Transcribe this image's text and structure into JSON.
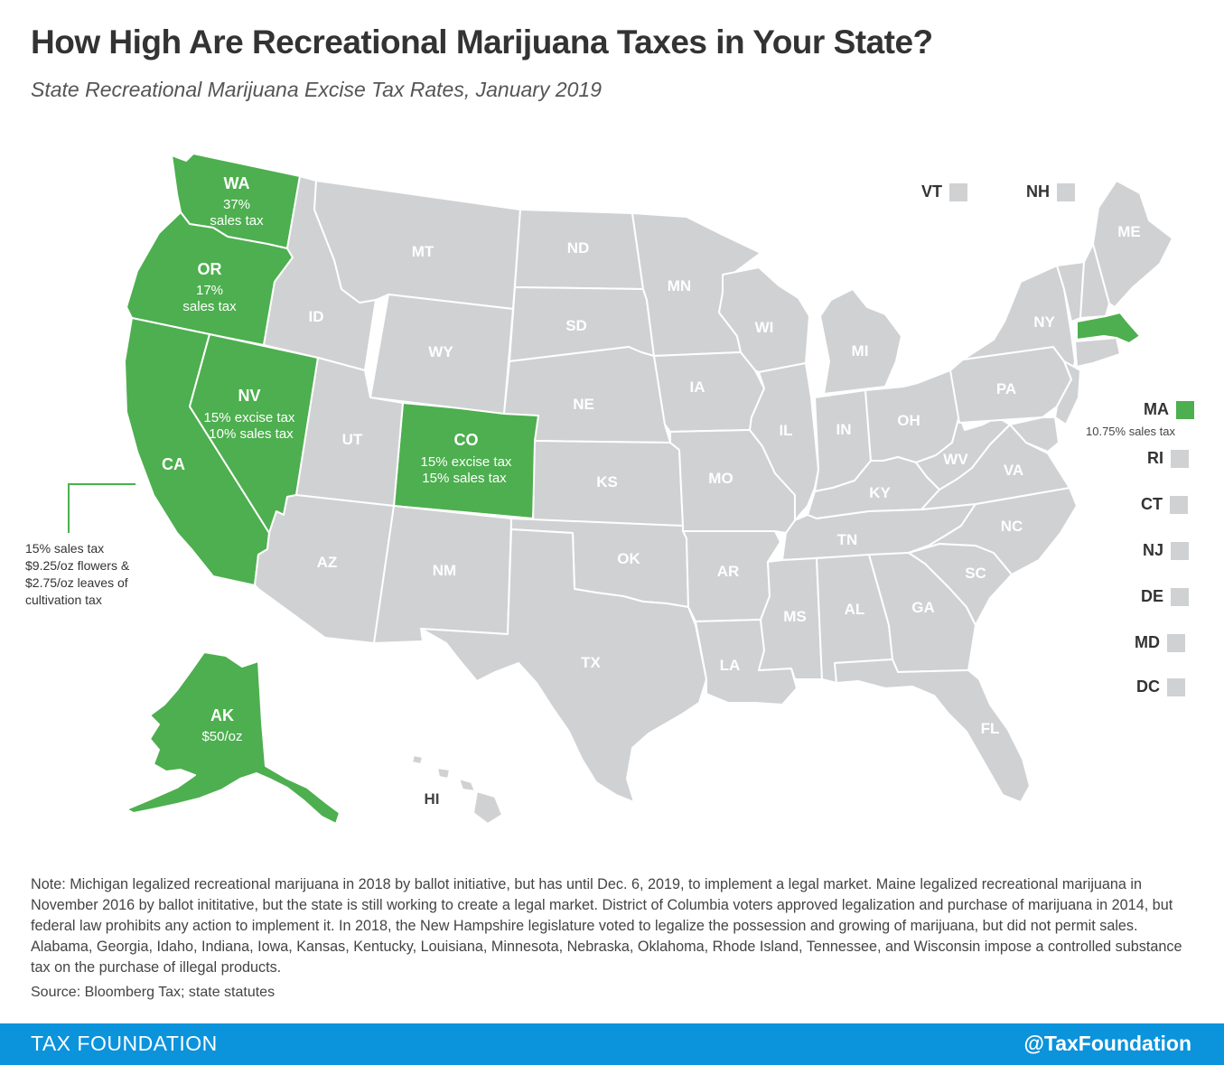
{
  "title": "How High Are Recreational Marijuana Taxes in Your State?",
  "subtitle": "State Recreational Marijuana Excise Tax Rates, January 2019",
  "colors": {
    "taxed": "#4daf4f",
    "not_taxed": "#d0d1d3",
    "footer": "#0b93dc"
  },
  "taxed_states": {
    "WA": {
      "name": "WA",
      "line1": "37%",
      "line2": "sales tax"
    },
    "OR": {
      "name": "OR",
      "line1": "17%",
      "line2": "sales tax"
    },
    "NV": {
      "name": "NV",
      "line1": "15% excise tax",
      "line2": "10% sales tax"
    },
    "CA": {
      "name": "CA"
    },
    "CO": {
      "name": "CO",
      "line1": "15% excise tax",
      "line2": "15% sales tax"
    },
    "AK": {
      "name": "AK",
      "line1": "$50/oz"
    },
    "MA": {
      "name": "MA",
      "line1": "10.75% sales tax"
    }
  },
  "ca_callout": [
    "15% sales tax",
    "$9.25/oz flowers &",
    "$2.75/oz leaves of",
    "cultivation tax"
  ],
  "untaxed_states": {
    "ID": "ID",
    "MT": "MT",
    "WY": "WY",
    "UT": "UT",
    "AZ": "AZ",
    "NM": "NM",
    "ND": "ND",
    "SD": "SD",
    "NE": "NE",
    "KS": "KS",
    "OK": "OK",
    "TX": "TX",
    "MN": "MN",
    "IA": "IA",
    "MO": "MO",
    "AR": "AR",
    "LA": "LA",
    "WI": "WI",
    "IL": "IL",
    "MI": "MI",
    "IN": "IN",
    "OH": "OH",
    "KY": "KY",
    "TN": "TN",
    "MS": "MS",
    "AL": "AL",
    "GA": "GA",
    "FL": "FL",
    "SC": "SC",
    "NC": "NC",
    "VA": "VA",
    "WV": "WV",
    "PA": "PA",
    "NY": "NY",
    "ME": "ME",
    "HI": "HI"
  },
  "side_states": {
    "VT": "VT",
    "NH": "NH",
    "RI": "RI",
    "CT": "CT",
    "NJ": "NJ",
    "DE": "DE",
    "MD": "MD",
    "DC": "DC"
  },
  "note": "Note: Michigan legalized recreational marijuana in 2018 by ballot initiative, but has until Dec. 6, 2019, to implement a legal market. Maine legalized recreational marijuana in November 2016 by ballot inititative, but the state is still working to create a legal market. District of Columbia voters approved legalization and purchase of marijuana in 2014, but federal law prohibits any action to implement it. In 2018, the New Hampshire legislature voted to legalize the possession and growing of marijuana, but did not permit sales. Alabama, Georgia, Idaho, Indiana, Iowa, Kansas, Kentucky, Louisiana, Minnesota, Nebraska, Oklahoma, Rhode Island, Tennessee, and Wisconsin impose a controlled substance tax on the purchase of illegal products.",
  "source": "Source: Bloomberg Tax; state statutes",
  "footer": {
    "brand": "TAX FOUNDATION",
    "handle": "@TaxFoundation"
  }
}
